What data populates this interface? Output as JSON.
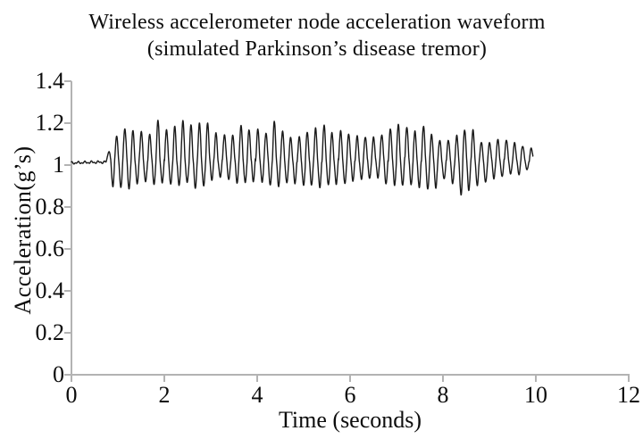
{
  "chart_data": {
    "type": "line",
    "title_line1": "Wireless accelerometer node acceleration waveform",
    "title_line2": "(simulated Parkinson’s disease tremor)",
    "xlabel": "Time (seconds)",
    "ylabel": "Acceleration(g’s)",
    "xlim": [
      0,
      12
    ],
    "ylim": [
      0,
      1.4
    ],
    "x_ticks": [
      {
        "v": 0,
        "label": "0"
      },
      {
        "v": 2,
        "label": "2"
      },
      {
        "v": 4,
        "label": "4"
      },
      {
        "v": 6,
        "label": "6"
      },
      {
        "v": 8,
        "label": "8"
      },
      {
        "v": 10,
        "label": "10"
      },
      {
        "v": 12,
        "label": "12"
      }
    ],
    "y_ticks": [
      {
        "v": 0,
        "label": "0"
      },
      {
        "v": 0.2,
        "label": "0.2"
      },
      {
        "v": 0.4,
        "label": "0.4"
      },
      {
        "v": 0.6,
        "label": "0.6"
      },
      {
        "v": 0.8,
        "label": "0.8"
      },
      {
        "v": 1,
        "label": "1"
      },
      {
        "v": 1.2,
        "label": "1.2"
      },
      {
        "v": 1.4,
        "label": "1.4"
      }
    ],
    "grid": false,
    "legend": "none",
    "axis_color": "#b3b3b3",
    "line_color": "#1a1a1a",
    "waveform": {
      "baseline_g": 1.01,
      "flat_until_s": 0.75,
      "tremor_end_s": 9.94,
      "tremor_frequency_hz": 5.6,
      "peak_envelope": [
        [
          0.75,
          0.02
        ],
        [
          0.85,
          0.12
        ],
        [
          1.0,
          0.17
        ],
        [
          1.5,
          0.18
        ],
        [
          2.0,
          0.19
        ],
        [
          2.6,
          0.21
        ],
        [
          3.0,
          0.17
        ],
        [
          3.5,
          0.16
        ],
        [
          4.0,
          0.17
        ],
        [
          4.5,
          0.18
        ],
        [
          5.0,
          0.16
        ],
        [
          5.5,
          0.17
        ],
        [
          6.0,
          0.15
        ],
        [
          6.5,
          0.16
        ],
        [
          7.0,
          0.17
        ],
        [
          7.5,
          0.18
        ],
        [
          8.0,
          0.15
        ],
        [
          8.5,
          0.16
        ],
        [
          9.0,
          0.13
        ],
        [
          9.5,
          0.11
        ],
        [
          9.94,
          0.07
        ]
      ],
      "trough_envelope": [
        [
          0.75,
          0.02
        ],
        [
          0.9,
          0.12
        ],
        [
          1.1,
          0.11
        ],
        [
          1.5,
          0.09
        ],
        [
          2.0,
          0.08
        ],
        [
          2.5,
          0.09
        ],
        [
          3.0,
          0.08
        ],
        [
          3.5,
          0.07
        ],
        [
          4.0,
          0.08
        ],
        [
          4.5,
          0.09
        ],
        [
          5.0,
          0.08
        ],
        [
          5.3,
          0.1
        ],
        [
          5.5,
          0.08
        ],
        [
          6.0,
          0.07
        ],
        [
          6.5,
          0.07
        ],
        [
          7.0,
          0.08
        ],
        [
          7.7,
          0.11
        ],
        [
          8.0,
          0.07
        ],
        [
          8.55,
          0.13
        ],
        [
          9.0,
          0.06
        ],
        [
          9.5,
          0.05
        ],
        [
          9.94,
          0.03
        ]
      ],
      "cycle_jitter": 0.4,
      "seed": 12
    }
  }
}
